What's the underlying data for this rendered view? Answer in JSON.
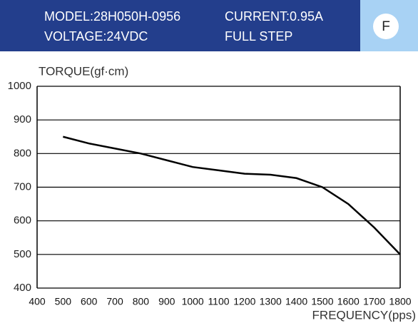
{
  "header": {
    "model": "MODEL:28H050H-0956",
    "current": "CURRENT:0.95A",
    "voltage": "VOLTAGE:24VDC",
    "step": "FULL STEP",
    "badge": "F"
  },
  "chart_data": {
    "type": "line",
    "y_label": "TORQUE(gf·cm)",
    "x_label": "FREQUENCY(pps)",
    "x": [
      500,
      600,
      700,
      800,
      900,
      1000,
      1100,
      1200,
      1300,
      1400,
      1500,
      1600,
      1700,
      1800
    ],
    "values": [
      850,
      830,
      815,
      800,
      780,
      760,
      750,
      740,
      737,
      727,
      700,
      650,
      580,
      500
    ],
    "color": "#000000",
    "xlim": [
      400,
      1800
    ],
    "xticks": [
      400,
      500,
      600,
      700,
      800,
      900,
      1000,
      1100,
      1200,
      1300,
      1400,
      1500,
      1600,
      1700,
      1800
    ],
    "ylim": [
      400,
      1000
    ],
    "yticks": [
      400,
      500,
      600,
      700,
      800,
      900,
      1000
    ],
    "grid": true
  }
}
